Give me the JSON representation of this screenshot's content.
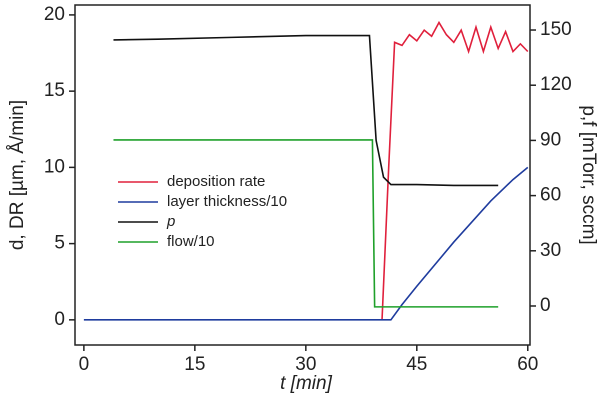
{
  "chart_data": {
    "type": "line",
    "xlabel": "t [min]",
    "ylabel": "d, DR [µm, Å/min]",
    "y2label": "p,f [mTorr, sccm]",
    "xlim": [
      -1.2,
      60.3
    ],
    "xticks": [
      0,
      15,
      30,
      45,
      60
    ],
    "ylim": [
      -1.65,
      20.65
    ],
    "yticks": [
      0,
      5,
      10,
      15,
      20
    ],
    "y2lim": [
      -21.2,
      163.6
    ],
    "y2ticks": [
      0,
      30,
      60,
      90,
      120,
      150
    ],
    "legend": "center-left",
    "series": [
      {
        "name": "deposition rate",
        "color": "#e0203c",
        "x": [
          40.3,
          41.2,
          42,
          43,
          44,
          45,
          46,
          47,
          48,
          49,
          50,
          51,
          52,
          53,
          54,
          55,
          56,
          57,
          58,
          59,
          60
        ],
        "values": [
          0,
          10,
          18.2,
          18,
          18.7,
          18.3,
          19,
          18.6,
          19.5,
          18.7,
          18.2,
          19,
          17.6,
          19.2,
          17.6,
          19.2,
          17.8,
          18.9,
          17.6,
          18.1,
          17.6
        ]
      },
      {
        "name": "layer thickness/10",
        "color": "#1f3c9e",
        "x": [
          0,
          41.5,
          43,
          45,
          50,
          55,
          58,
          60
        ],
        "values": [
          0,
          0,
          1,
          2.2,
          5.1,
          7.8,
          9.2,
          10
        ]
      },
      {
        "name": "p",
        "color": "#111111",
        "axis": "y2",
        "x": [
          4,
          10,
          20,
          30,
          38.6,
          39.5,
          40.5,
          41.5,
          45,
          50,
          56
        ],
        "values": [
          144.6,
          145,
          146,
          147,
          147,
          90,
          70,
          66,
          66,
          65.5,
          65.5
        ]
      },
      {
        "name": "flow/10",
        "color": "#1fa02a",
        "x": [
          4,
          39,
          39.3,
          56
        ],
        "values": [
          11.8,
          11.8,
          0.85,
          0.85
        ]
      }
    ]
  }
}
